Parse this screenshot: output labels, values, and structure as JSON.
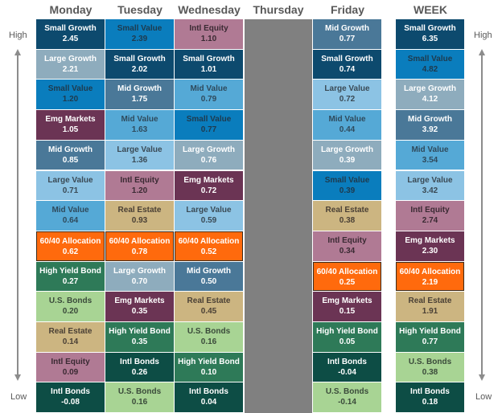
{
  "chart_data": {
    "type": "table",
    "title": "Daily and weekly asset class returns ranked High to Low",
    "axis": {
      "top_label": "High",
      "bottom_label": "Low"
    },
    "columns": [
      "Monday",
      "Tuesday",
      "Wednesday",
      "Thursday",
      "Friday",
      "WEEK"
    ],
    "data": {
      "Monday": [
        {
          "name": "Small Growth",
          "value": "2.45"
        },
        {
          "name": "Large Growth",
          "value": "2.21"
        },
        {
          "name": "Small Value",
          "value": "1.20"
        },
        {
          "name": "Emg Markets",
          "value": "1.05"
        },
        {
          "name": "Mid Growth",
          "value": "0.85"
        },
        {
          "name": "Large Value",
          "value": "0.71"
        },
        {
          "name": "Mid Value",
          "value": "0.64"
        },
        {
          "name": "60/40 Allocation",
          "value": "0.62"
        },
        {
          "name": "High Yield Bond",
          "value": "0.27"
        },
        {
          "name": "U.S. Bonds",
          "value": "0.20"
        },
        {
          "name": "Real Estate",
          "value": "0.14"
        },
        {
          "name": "Intl Equity",
          "value": "0.09"
        },
        {
          "name": "Intl Bonds",
          "value": "-0.08"
        }
      ],
      "Tuesday": [
        {
          "name": "Small Value",
          "value": "2.39"
        },
        {
          "name": "Small Growth",
          "value": "2.02"
        },
        {
          "name": "Mid Growth",
          "value": "1.75"
        },
        {
          "name": "Mid Value",
          "value": "1.63"
        },
        {
          "name": "Large Value",
          "value": "1.36"
        },
        {
          "name": "Intl Equity",
          "value": "1.20"
        },
        {
          "name": "Real Estate",
          "value": "0.93"
        },
        {
          "name": "60/40 Allocation",
          "value": "0.78"
        },
        {
          "name": "Large Growth",
          "value": "0.70"
        },
        {
          "name": "Emg Markets",
          "value": "0.35"
        },
        {
          "name": "High Yield Bond",
          "value": "0.35"
        },
        {
          "name": "Intl Bonds",
          "value": "0.26"
        },
        {
          "name": "U.S. Bonds",
          "value": "0.16"
        }
      ],
      "Wednesday": [
        {
          "name": "Intl Equity",
          "value": "1.10"
        },
        {
          "name": "Small Growth",
          "value": "1.01"
        },
        {
          "name": "Mid Value",
          "value": "0.79"
        },
        {
          "name": "Small Value",
          "value": "0.77"
        },
        {
          "name": "Large Growth",
          "value": "0.76"
        },
        {
          "name": "Emg Markets",
          "value": "0.72"
        },
        {
          "name": "Large Value",
          "value": "0.59"
        },
        {
          "name": "60/40 Allocation",
          "value": "0.52"
        },
        {
          "name": "Mid Growth",
          "value": "0.50"
        },
        {
          "name": "Real Estate",
          "value": "0.45"
        },
        {
          "name": "U.S. Bonds",
          "value": "0.16"
        },
        {
          "name": "High Yield Bond",
          "value": "0.10"
        },
        {
          "name": "Intl Bonds",
          "value": "0.04"
        }
      ],
      "Thursday": [],
      "Friday": [
        {
          "name": "Mid Growth",
          "value": "0.77"
        },
        {
          "name": "Small Growth",
          "value": "0.74"
        },
        {
          "name": "Large Value",
          "value": "0.72"
        },
        {
          "name": "Mid Value",
          "value": "0.44"
        },
        {
          "name": "Large Growth",
          "value": "0.39"
        },
        {
          "name": "Small Value",
          "value": "0.39"
        },
        {
          "name": "Real Estate",
          "value": "0.38"
        },
        {
          "name": "Intl Equity",
          "value": "0.34"
        },
        {
          "name": "60/40 Allocation",
          "value": "0.25"
        },
        {
          "name": "Emg Markets",
          "value": "0.15"
        },
        {
          "name": "High Yield Bond",
          "value": "0.05"
        },
        {
          "name": "Intl Bonds",
          "value": "-0.04"
        },
        {
          "name": "U.S. Bonds",
          "value": "-0.14"
        }
      ],
      "WEEK": [
        {
          "name": "Small Growth",
          "value": "6.35"
        },
        {
          "name": "Small Value",
          "value": "4.82"
        },
        {
          "name": "Large Growth",
          "value": "4.12"
        },
        {
          "name": "Mid Growth",
          "value": "3.92"
        },
        {
          "name": "Mid Value",
          "value": "3.54"
        },
        {
          "name": "Large Value",
          "value": "3.42"
        },
        {
          "name": "Intl Equity",
          "value": "2.74"
        },
        {
          "name": "Emg Markets",
          "value": "2.30"
        },
        {
          "name": "60/40 Allocation",
          "value": "2.19"
        },
        {
          "name": "Real Estate",
          "value": "1.91"
        },
        {
          "name": "High Yield Bond",
          "value": "0.77"
        },
        {
          "name": "U.S. Bonds",
          "value": "0.38"
        },
        {
          "name": "Intl Bonds",
          "value": "0.18"
        }
      ]
    },
    "asset_colors": {
      "Small Growth": {
        "bg": "#0d4a6e",
        "fg": "#ffffff"
      },
      "Large Growth": {
        "bg": "#8eacbd",
        "fg": "#ffffff"
      },
      "Small Value": {
        "bg": "#0a7dbd",
        "fg": "#1f3a4d"
      },
      "Emg Markets": {
        "bg": "#6b3454",
        "fg": "#ffffff"
      },
      "Mid Growth": {
        "bg": "#4a7898",
        "fg": "#ffffff"
      },
      "Large Value": {
        "bg": "#8cc3e4",
        "fg": "#3a4a55"
      },
      "Mid Value": {
        "bg": "#55a9d6",
        "fg": "#2f4a5c"
      },
      "60/40 Allocation": {
        "bg": "#ff6a0d",
        "fg": "#ffffff"
      },
      "High Yield Bond": {
        "bg": "#2e7a58",
        "fg": "#ffffff"
      },
      "U.S. Bonds": {
        "bg": "#a8d494",
        "fg": "#3a4a3a"
      },
      "Real Estate": {
        "bg": "#ccb581",
        "fg": "#4a4035"
      },
      "Intl Equity": {
        "bg": "#b07a94",
        "fg": "#3a2a33"
      },
      "Intl Bonds": {
        "bg": "#0d4d45",
        "fg": "#ffffff"
      }
    },
    "thursday_color": "#808080"
  },
  "labels": {
    "high_left": "High",
    "low_left": "Low",
    "high_right": "High",
    "low_right": "Low"
  },
  "headers": {
    "monday": "Monday",
    "tuesday": "Tuesday",
    "wednesday": "Wednesday",
    "thursday": "Thursday",
    "friday": "Friday",
    "week": "WEEK"
  }
}
